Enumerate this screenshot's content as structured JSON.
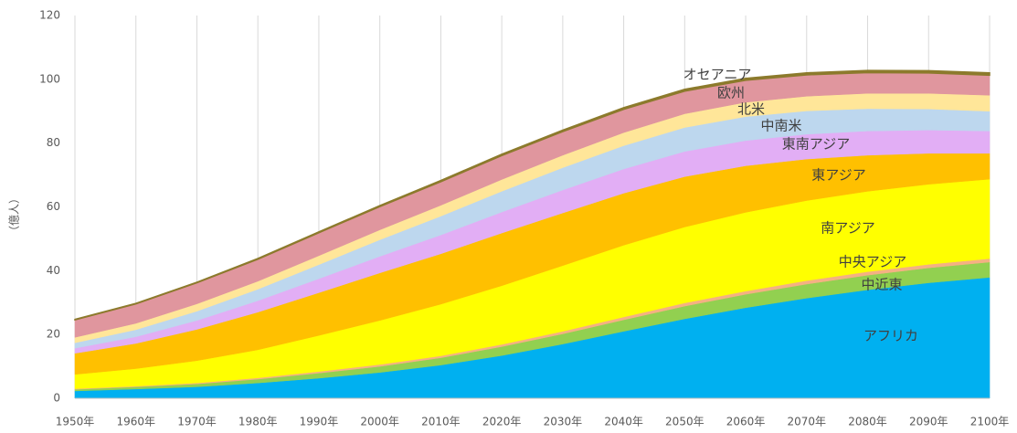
{
  "chart_data": {
    "type": "stacked-area",
    "y_label": "（億人）",
    "x": [
      1950,
      1960,
      1970,
      1980,
      1990,
      2000,
      2010,
      2020,
      2030,
      2040,
      2050,
      2060,
      2070,
      2080,
      2090,
      2100
    ],
    "xlim": [
      1950,
      2100
    ],
    "xticks": [
      {
        "value": 1950,
        "label": "1950年"
      },
      {
        "value": 1960,
        "label": "1960年"
      },
      {
        "value": 1970,
        "label": "1970年"
      },
      {
        "value": 1980,
        "label": "1980年"
      },
      {
        "value": 1990,
        "label": "1990年"
      },
      {
        "value": 2000,
        "label": "2000年"
      },
      {
        "value": 2010,
        "label": "2010年"
      },
      {
        "value": 2020,
        "label": "2020年"
      },
      {
        "value": 2030,
        "label": "2030年"
      },
      {
        "value": 2040,
        "label": "2040年"
      },
      {
        "value": 2050,
        "label": "2050年"
      },
      {
        "value": 2060,
        "label": "2060年"
      },
      {
        "value": 2070,
        "label": "2070年"
      },
      {
        "value": 2080,
        "label": "2080年"
      },
      {
        "value": 2090,
        "label": "2090年"
      },
      {
        "value": 2100,
        "label": "2100年"
      }
    ],
    "ylim": [
      0,
      120
    ],
    "yticks": [
      0,
      20,
      40,
      60,
      80,
      100,
      120
    ],
    "grid": "x",
    "series": [
      {
        "name": "アフリカ",
        "color": "#00b0f0",
        "values": [
          2.3,
          2.9,
          3.6,
          4.8,
          6.3,
          8.1,
          10.4,
          13.4,
          17.0,
          21.0,
          24.9,
          28.4,
          31.4,
          34.0,
          36.2,
          37.9
        ]
      },
      {
        "name": "中近東",
        "color": "#92d050",
        "values": [
          0.5,
          0.7,
          0.9,
          1.2,
          1.6,
          1.9,
          2.3,
          2.8,
          3.2,
          3.6,
          4.0,
          4.2,
          4.4,
          4.6,
          4.7,
          4.8
        ]
      },
      {
        "name": "中央アジア",
        "color": "#f4b183",
        "values": [
          0.2,
          0.2,
          0.3,
          0.4,
          0.5,
          0.6,
          0.6,
          0.7,
          0.8,
          0.9,
          1.0,
          1.0,
          1.1,
          1.1,
          1.1,
          1.1
        ]
      },
      {
        "name": "南アジア",
        "color": "#ffff00",
        "values": [
          4.5,
          5.5,
          7.0,
          8.8,
          11.3,
          13.8,
          16.2,
          18.4,
          20.6,
          22.5,
          23.8,
          24.7,
          25.1,
          25.2,
          25.1,
          24.9
        ]
      },
      {
        "name": "東アジア",
        "color": "#ffc000",
        "values": [
          6.6,
          7.9,
          9.8,
          11.8,
          13.4,
          14.9,
          15.8,
          16.5,
          16.5,
          16.3,
          15.8,
          14.6,
          13.0,
          11.3,
          9.7,
          8.1
        ]
      },
      {
        "name": "東南アジア",
        "color": "#e2aef5",
        "values": [
          1.6,
          2.1,
          2.8,
          3.6,
          4.4,
          5.2,
          5.9,
          6.6,
          7.2,
          7.6,
          7.9,
          7.9,
          7.8,
          7.6,
          7.3,
          7.0
        ]
      },
      {
        "name": "中南米",
        "color": "#bdd7ee",
        "values": [
          1.7,
          2.2,
          2.9,
          3.6,
          4.4,
          5.2,
          5.9,
          6.5,
          7.0,
          7.3,
          7.5,
          7.5,
          7.3,
          7.0,
          6.6,
          6.2
        ]
      },
      {
        "name": "北米",
        "color": "#ffe699",
        "values": [
          1.7,
          2.0,
          2.3,
          2.5,
          2.8,
          3.1,
          3.4,
          3.7,
          3.9,
          4.1,
          4.3,
          4.5,
          4.6,
          4.8,
          4.9,
          5.0
        ]
      },
      {
        "name": "欧州",
        "color": "#e0969e",
        "values": [
          5.5,
          6.1,
          6.6,
          6.9,
          7.2,
          7.3,
          7.4,
          7.5,
          7.4,
          7.3,
          7.1,
          6.9,
          6.7,
          6.5,
          6.4,
          6.3
        ]
      },
      {
        "name": "オセアニア",
        "color": "#8c7a2c",
        "values": [
          0.13,
          0.16,
          0.2,
          0.23,
          0.27,
          0.31,
          0.37,
          0.43,
          0.48,
          0.53,
          0.57,
          0.61,
          0.64,
          0.67,
          0.7,
          0.72
        ]
      }
    ]
  }
}
